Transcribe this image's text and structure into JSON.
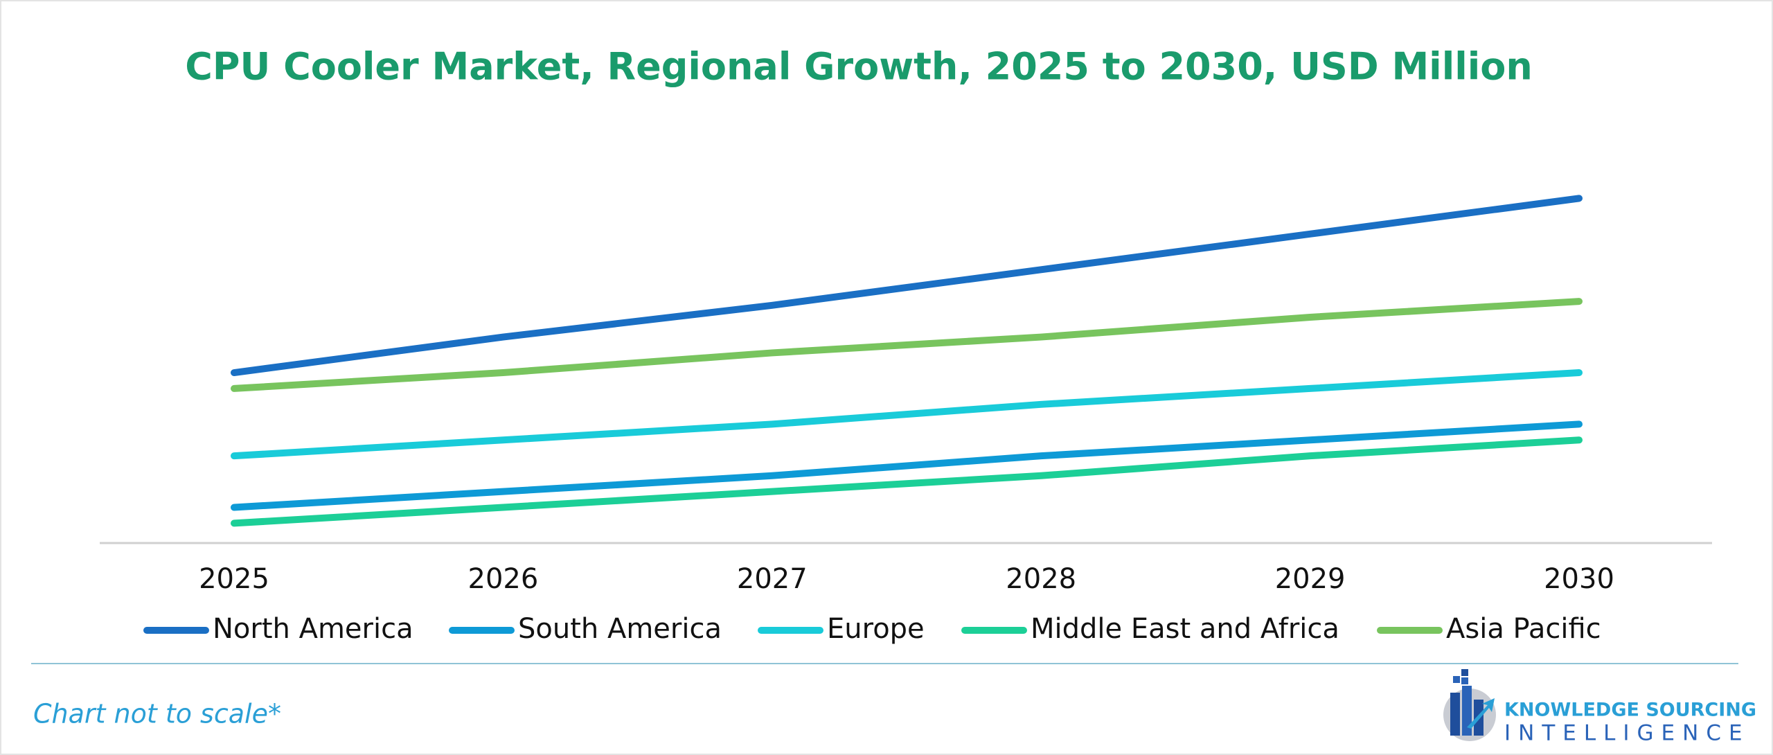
{
  "chart_data": {
    "type": "line",
    "title": "CPU Cooler Market, Regional Growth, 2025 to 2030, USD Million",
    "categories": [
      "2025",
      "2026",
      "2027",
      "2028",
      "2029",
      "2030"
    ],
    "series": [
      {
        "name": "North America",
        "color": "#1a6fc4",
        "values": [
          43,
          52,
          60,
          69,
          78,
          87
        ]
      },
      {
        "name": "South America",
        "color": "#0e9ad6",
        "values": [
          9,
          13,
          17,
          22,
          26,
          30
        ]
      },
      {
        "name": "Europe",
        "color": "#19cbd9",
        "values": [
          22,
          26,
          30,
          35,
          39,
          43
        ]
      },
      {
        "name": "Middle East and Africa",
        "color": "#1ccf97",
        "values": [
          5,
          9,
          13,
          17,
          22,
          26
        ]
      },
      {
        "name": "Asia Pacific",
        "color": "#78c45e",
        "values": [
          39,
          43,
          48,
          52,
          57,
          61
        ]
      }
    ],
    "ylim": [
      0,
      100
    ],
    "grid": false
  },
  "footnote": "Chart not to scale*",
  "logo": {
    "line1": "KNOWLEDGE SOURCING",
    "line2": "INTELLIGENCE"
  }
}
